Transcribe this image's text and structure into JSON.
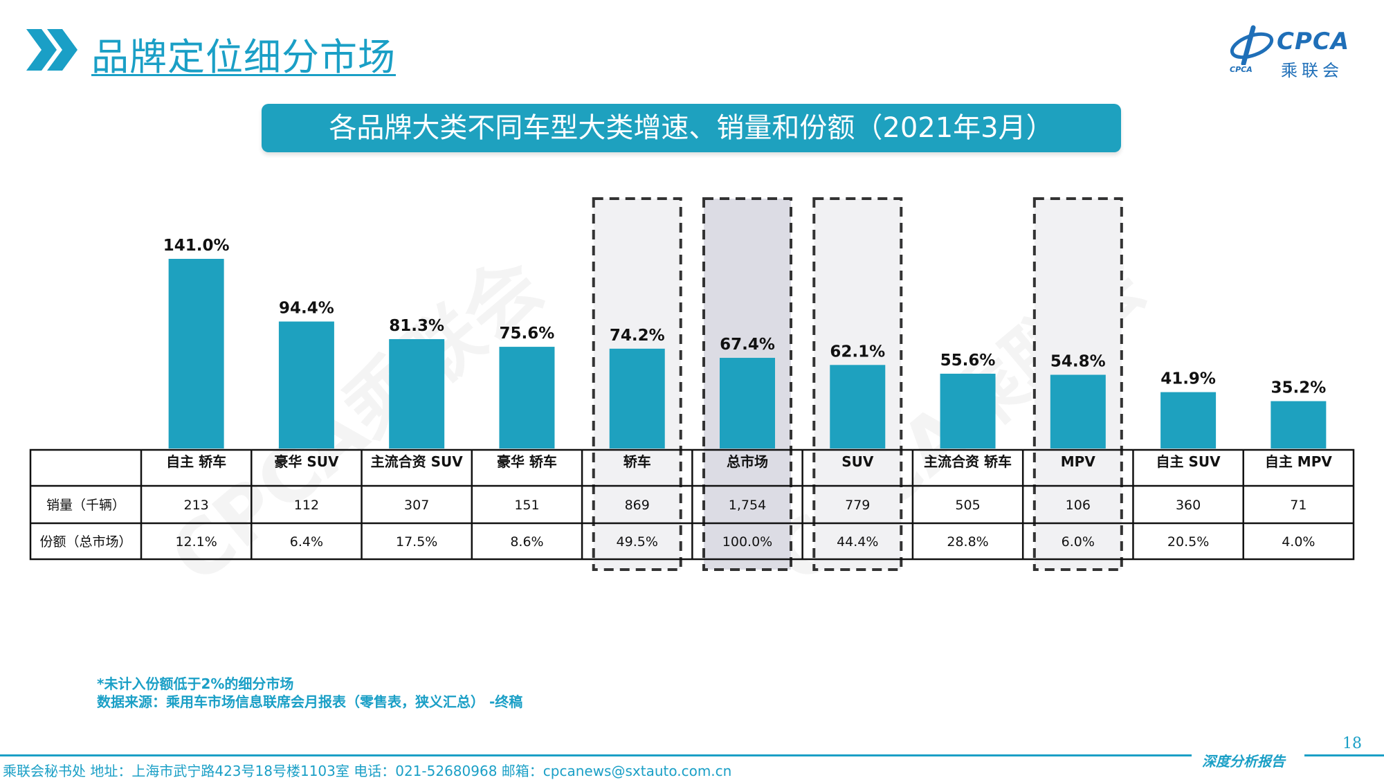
{
  "header": {
    "title": "品牌定位细分市场"
  },
  "logo": {
    "en": "CPCA",
    "cn": "乘联会",
    "sub": "CPCA"
  },
  "watermark": "CPCA乘联会",
  "colors": {
    "accent": "#1a9fc6",
    "bar": "#1ea1bf",
    "highlight_dark": "#dcdce4",
    "highlight_light": "#f1f1f3"
  },
  "chart_data": {
    "type": "bar",
    "title": "各品牌大类不同车型大类增速、销量和份额（2021年3月）",
    "categories": [
      "自主 轿车",
      "豪华 SUV",
      "主流合资 SUV",
      "豪华 轿车",
      "轿车",
      "总市场",
      "SUV",
      "主流合资 轿车",
      "MPV",
      "自主 SUV",
      "自主 MPV"
    ],
    "values": [
      141.0,
      94.4,
      81.3,
      75.6,
      74.2,
      67.4,
      62.1,
      55.6,
      54.8,
      41.9,
      35.2
    ],
    "value_labels": [
      "141.0%",
      "94.4%",
      "81.3%",
      "75.6%",
      "74.2%",
      "67.4%",
      "62.1%",
      "55.6%",
      "54.8%",
      "41.9%",
      "35.2%"
    ],
    "highlighted": [
      "轿车",
      "总市场",
      "SUV",
      "MPV"
    ],
    "highlighted_emphasis": "总市场",
    "table_rows": [
      {
        "label": "销量（千辆）",
        "cells": [
          "213",
          "112",
          "307",
          "151",
          "869",
          "1,754",
          "779",
          "505",
          "106",
          "360",
          "71"
        ]
      },
      {
        "label": "份额（总市场）",
        "cells": [
          "12.1%",
          "6.4%",
          "17.5%",
          "8.6%",
          "49.5%",
          "100.0%",
          "44.4%",
          "28.8%",
          "6.0%",
          "20.5%",
          "4.0%"
        ]
      }
    ],
    "grid": false,
    "legend": "none"
  },
  "notes": {
    "line1": "*未计入份额低于2%的细分市场",
    "line2": "数据来源：乘用车市场信息联席会月报表（零售表，狭义汇总） -终稿"
  },
  "footer": {
    "address": "乘联会秘书处   地址：上海市武宁路423号18号楼1103室  电话：021-52680968   邮箱：cpcanews@sxtauto.com.cn",
    "brand": "深度分析报告",
    "page": "18"
  }
}
